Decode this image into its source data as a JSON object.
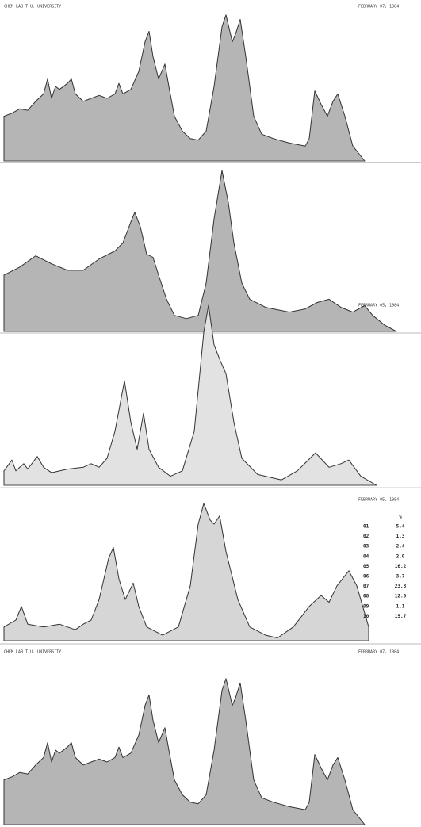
{
  "chart_data": [
    {
      "type": "area",
      "title": "CHEM LAB T.U. UNIVERSITY",
      "date": "FEBRUARY 07, 1984",
      "color": "#b5b5b5",
      "xlim": [
        0,
        500
      ],
      "ylim": [
        0,
        100
      ],
      "x": [
        0,
        10,
        20,
        30,
        40,
        50,
        55,
        60,
        65,
        70,
        80,
        85,
        90,
        100,
        110,
        120,
        130,
        140,
        145,
        150,
        160,
        170,
        178,
        183,
        188,
        195,
        203,
        208,
        215,
        225,
        235,
        245,
        255,
        265,
        275,
        280,
        288,
        292,
        298,
        305,
        315,
        325,
        340,
        360,
        380,
        385,
        392,
        400,
        408,
        415,
        421,
        430,
        440,
        455
      ],
      "values": [
        30,
        32,
        35,
        34,
        40,
        45,
        55,
        42,
        50,
        48,
        52,
        55,
        45,
        40,
        42,
        44,
        42,
        45,
        52,
        45,
        48,
        60,
        80,
        87,
        70,
        55,
        65,
        50,
        30,
        20,
        15,
        14,
        20,
        50,
        90,
        98,
        80,
        85,
        95,
        70,
        30,
        18,
        15,
        12,
        10,
        15,
        47,
        38,
        30,
        40,
        45,
        30,
        10,
        0
      ]
    },
    {
      "type": "area",
      "color": "#b5b5b5",
      "xlim": [
        0,
        500
      ],
      "ylim": [
        0,
        100
      ],
      "x": [
        0,
        20,
        40,
        60,
        80,
        100,
        120,
        140,
        150,
        160,
        165,
        172,
        180,
        188,
        195,
        205,
        215,
        230,
        245,
        255,
        265,
        275,
        283,
        290,
        300,
        310,
        330,
        360,
        380,
        395,
        410,
        425,
        440,
        455,
        465,
        480,
        495
      ],
      "values": [
        35,
        40,
        47,
        42,
        38,
        38,
        45,
        50,
        55,
        68,
        74,
        65,
        48,
        46,
        35,
        20,
        10,
        8,
        10,
        30,
        70,
        100,
        80,
        55,
        30,
        20,
        15,
        12,
        14,
        18,
        20,
        15,
        12,
        16,
        10,
        4,
        0
      ]
    },
    {
      "type": "area",
      "date": "FEBRUARY 05, 1984",
      "color": "#e2e2e2",
      "xlim": [
        0,
        500
      ],
      "ylim": [
        0,
        100
      ],
      "x": [
        0,
        10,
        15,
        25,
        30,
        42,
        50,
        60,
        80,
        100,
        110,
        120,
        130,
        140,
        152,
        160,
        168,
        176,
        183,
        195,
        210,
        225,
        240,
        252,
        258,
        265,
        272,
        280,
        290,
        300,
        320,
        350,
        370,
        393,
        410,
        425,
        435,
        450,
        470
      ],
      "values": [
        8,
        14,
        8,
        12,
        9,
        16,
        10,
        7,
        9,
        10,
        12,
        10,
        15,
        30,
        58,
        35,
        20,
        40,
        20,
        10,
        5,
        8,
        30,
        85,
        100,
        78,
        70,
        62,
        35,
        15,
        6,
        3,
        8,
        18,
        10,
        12,
        14,
        5,
        0
      ]
    },
    {
      "type": "area",
      "date": "FEBRUARY 05, 1984",
      "color": "#d6d6d6",
      "xlim": [
        0,
        500
      ],
      "ylim": [
        0,
        100
      ],
      "x": [
        0,
        15,
        22,
        30,
        50,
        70,
        90,
        100,
        110,
        120,
        132,
        138,
        145,
        153,
        163,
        170,
        180,
        200,
        220,
        235,
        245,
        252,
        260,
        265,
        272,
        280,
        295,
        310,
        330,
        345,
        365,
        385,
        400,
        410,
        420,
        435,
        445,
        455,
        460
      ],
      "values": [
        10,
        15,
        25,
        12,
        10,
        12,
        8,
        12,
        15,
        30,
        60,
        68,
        45,
        30,
        42,
        25,
        10,
        4,
        10,
        40,
        85,
        100,
        88,
        85,
        91,
        65,
        30,
        10,
        4,
        2,
        10,
        25,
        33,
        28,
        40,
        51,
        40,
        20,
        10
      ],
      "table": {
        "header": "%",
        "rows": [
          [
            "01",
            "5.4"
          ],
          [
            "02",
            "1.3"
          ],
          [
            "03",
            "2.4"
          ],
          [
            "04",
            "2.0"
          ],
          [
            "05",
            "16.2"
          ],
          [
            "06",
            "3.7"
          ],
          [
            "07",
            "23.3"
          ],
          [
            "08",
            "12.0"
          ],
          [
            "09",
            "1.1"
          ],
          [
            "10",
            "15.7"
          ]
        ]
      }
    },
    {
      "type": "area",
      "title": "CHEM LAB T.U. UNIVERSITY",
      "date": "FEBRUARY 07, 1984",
      "color": "#b5b5b5",
      "xlim": [
        0,
        500
      ],
      "ylim": [
        0,
        100
      ],
      "x": [
        0,
        10,
        20,
        30,
        40,
        50,
        55,
        60,
        65,
        70,
        80,
        85,
        90,
        100,
        110,
        120,
        130,
        140,
        145,
        150,
        160,
        170,
        178,
        183,
        188,
        195,
        203,
        208,
        215,
        225,
        235,
        245,
        255,
        265,
        275,
        280,
        288,
        292,
        298,
        305,
        315,
        325,
        340,
        360,
        380,
        385,
        392,
        400,
        408,
        415,
        421,
        430,
        440,
        455
      ],
      "values": [
        30,
        32,
        35,
        34,
        40,
        45,
        55,
        42,
        50,
        48,
        52,
        55,
        45,
        40,
        42,
        44,
        42,
        45,
        52,
        45,
        48,
        60,
        80,
        87,
        70,
        55,
        65,
        50,
        30,
        20,
        15,
        14,
        20,
        50,
        90,
        98,
        80,
        85,
        95,
        70,
        30,
        18,
        15,
        12,
        10,
        15,
        47,
        38,
        30,
        40,
        45,
        30,
        10,
        0
      ]
    }
  ]
}
